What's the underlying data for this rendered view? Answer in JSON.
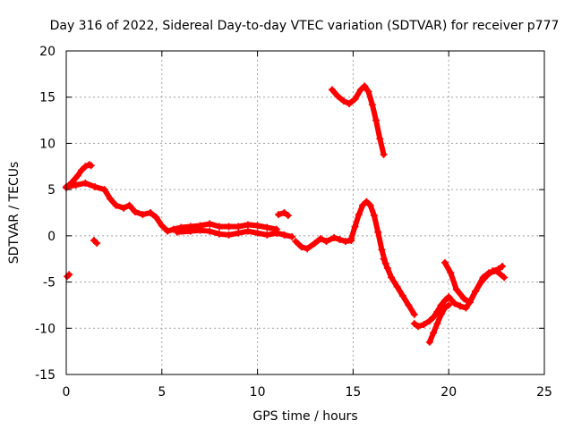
{
  "chart_data": {
    "type": "scatter",
    "title": "Day 316 of 2022, Sidereal Day-to-day VTEC variation (SDTVAR) for receiver p777",
    "xlabel": "GPS time / hours",
    "ylabel": "SDTVAR / TECUs",
    "xlim": [
      0,
      25
    ],
    "ylim": [
      -15,
      20
    ],
    "xticks": [
      0,
      5,
      10,
      15,
      20,
      25
    ],
    "yticks": [
      -15,
      -10,
      -5,
      0,
      5,
      10,
      15,
      20
    ],
    "xtick_labels": [
      "0",
      "5",
      "10",
      "15",
      "20",
      "25"
    ],
    "ytick_labels": [
      "-15",
      "-10",
      "-5",
      "0",
      "5",
      "10",
      "15",
      "20"
    ],
    "grid": true,
    "marker": "+",
    "color": "#ff0000",
    "series": [
      {
        "name": "s1",
        "x": [
          0.05,
          0.15
        ],
        "y": [
          -4.4,
          -4.2
        ]
      },
      {
        "name": "s2",
        "x": [
          1.45,
          1.6
        ],
        "y": [
          -0.5,
          -0.8
        ]
      },
      {
        "name": "s3",
        "x": [
          0.0,
          0.3,
          0.6,
          0.8,
          1.0,
          1.2,
          1.3
        ],
        "y": [
          5.2,
          5.8,
          6.5,
          7.1,
          7.5,
          7.7,
          7.6
        ]
      },
      {
        "name": "s4",
        "x": [
          0.0,
          0.5,
          1.0,
          1.5,
          2.0,
          2.3,
          2.6,
          3.0,
          3.3,
          3.6,
          4.0,
          4.4,
          4.7,
          5.0,
          5.3,
          5.6,
          6.0,
          6.5,
          7.0,
          7.5,
          8.0,
          8.5,
          9.0,
          9.5,
          10.0,
          10.5,
          11.0
        ],
        "y": [
          5.3,
          5.5,
          5.7,
          5.3,
          5.0,
          4.0,
          3.3,
          3.0,
          3.3,
          2.6,
          2.3,
          2.5,
          2.0,
          1.1,
          0.5,
          0.7,
          0.9,
          1.0,
          1.1,
          1.3,
          1.0,
          1.0,
          1.0,
          1.2,
          1.1,
          0.9,
          0.7
        ]
      },
      {
        "name": "s5",
        "x": [
          5.8,
          6.5,
          7.0,
          7.5,
          8.0,
          8.5,
          9.0,
          9.5,
          10.0,
          10.5,
          11.0
        ],
        "y": [
          0.4,
          0.5,
          0.6,
          0.5,
          0.2,
          0.1,
          0.3,
          0.5,
          0.3,
          0.1,
          0.3
        ]
      },
      {
        "name": "s6",
        "x": [
          11.0,
          11.4,
          11.8
        ],
        "y": [
          0.3,
          0.1,
          -0.1
        ]
      },
      {
        "name": "s7",
        "x": [
          11.1,
          11.4,
          11.6
        ],
        "y": [
          2.3,
          2.5,
          2.2
        ]
      },
      {
        "name": "s8",
        "x": [
          12.0,
          12.3,
          12.6,
          13.0,
          13.3,
          13.6,
          14.0,
          14.3,
          14.6,
          14.9
        ],
        "y": [
          -0.6,
          -1.2,
          -1.4,
          -0.8,
          -0.3,
          -0.6,
          -0.2,
          -0.4,
          -0.6,
          -0.5
        ]
      },
      {
        "name": "s9",
        "x": [
          14.9,
          15.1,
          15.3,
          15.5,
          15.7,
          15.9,
          16.1,
          16.3,
          16.5,
          16.7
        ],
        "y": [
          -0.3,
          1.0,
          2.3,
          3.3,
          3.7,
          3.3,
          2.2,
          0.4,
          -1.5,
          -3.0
        ]
      },
      {
        "name": "s10",
        "x": [
          16.6,
          16.8,
          17.0,
          17.3,
          17.6,
          17.9,
          18.2
        ],
        "y": [
          -2.5,
          -3.5,
          -4.5,
          -5.5,
          -6.5,
          -7.5,
          -8.5
        ]
      },
      {
        "name": "s11",
        "x": [
          18.2,
          18.4,
          18.7,
          19.0,
          19.2,
          19.4,
          19.6,
          19.8,
          20.0,
          20.3,
          20.6,
          20.9,
          21.1,
          21.4,
          21.7,
          22.0,
          22.3,
          22.6,
          22.8
        ],
        "y": [
          -9.5,
          -9.8,
          -9.6,
          -9.2,
          -8.8,
          -8.2,
          -7.5,
          -7.0,
          -6.6,
          -7.3,
          -7.6,
          -7.8,
          -7.2,
          -6.0,
          -5.0,
          -4.3,
          -3.8,
          -3.6,
          -3.3
        ]
      },
      {
        "name": "s12",
        "x": [
          19.0,
          19.2,
          19.4,
          19.6,
          19.8,
          20.0
        ],
        "y": [
          -11.5,
          -10.5,
          -9.5,
          -8.5,
          -7.8,
          -7.5
        ]
      },
      {
        "name": "s13",
        "x": [
          19.8,
          20.1,
          20.4,
          20.8,
          21.1,
          21.4,
          21.8,
          22.1,
          22.5,
          22.9
        ],
        "y": [
          -2.9,
          -4.0,
          -5.8,
          -6.8,
          -7.2,
          -6.0,
          -4.5,
          -4.0,
          -3.8,
          -4.5
        ]
      },
      {
        "name": "s14",
        "x": [
          13.9,
          14.2,
          14.5,
          14.8,
          15.1,
          15.4,
          15.6,
          15.8,
          16.0,
          16.2,
          16.4,
          16.6
        ],
        "y": [
          15.8,
          15.1,
          14.6,
          14.3,
          14.8,
          15.8,
          16.2,
          15.6,
          14.2,
          12.5,
          10.5,
          8.8
        ]
      }
    ]
  }
}
